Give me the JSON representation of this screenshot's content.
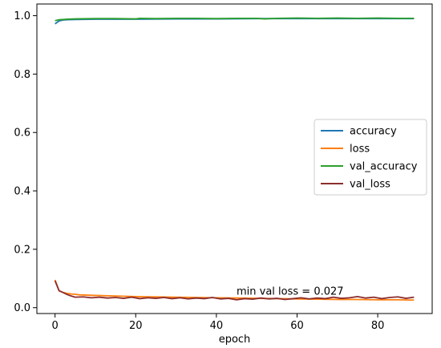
{
  "chart_data": {
    "type": "line",
    "xlabel": "epoch",
    "ylabel": "",
    "xlim": [
      -4.5,
      93.5
    ],
    "ylim": [
      -0.02,
      1.04
    ],
    "xticks": [
      0,
      20,
      40,
      60,
      80
    ],
    "yticks": [
      0.0,
      0.2,
      0.4,
      0.6,
      0.8,
      1.0
    ],
    "xtick_labels": [
      "0",
      "20",
      "40",
      "60",
      "80"
    ],
    "ytick_labels": [
      "0.0",
      "0.2",
      "0.4",
      "0.6",
      "0.8",
      "1.0"
    ],
    "grid": false,
    "legend_position": "center-right",
    "annotation": {
      "text": "min val loss = 0.027",
      "x": 45,
      "y": 0.045
    },
    "series": [
      {
        "name": "accuracy",
        "color": "#1f77b4",
        "x": [
          0,
          1,
          2,
          3,
          5,
          10,
          20,
          30,
          40,
          50,
          60,
          70,
          80,
          89
        ],
        "values": [
          0.972,
          0.982,
          0.985,
          0.986,
          0.987,
          0.988,
          0.988,
          0.989,
          0.989,
          0.99,
          0.99,
          0.99,
          0.99,
          0.99
        ]
      },
      {
        "name": "loss",
        "color": "#ff7f0e",
        "x": [
          0,
          1,
          2,
          3,
          4,
          5,
          6,
          8,
          10,
          15,
          20,
          25,
          30,
          35,
          40,
          45,
          50,
          55,
          60,
          65,
          70,
          75,
          80,
          85,
          89
        ],
        "values": [
          0.095,
          0.058,
          0.052,
          0.049,
          0.047,
          0.046,
          0.044,
          0.043,
          0.042,
          0.04,
          0.038,
          0.037,
          0.036,
          0.035,
          0.034,
          0.033,
          0.032,
          0.031,
          0.03,
          0.029,
          0.028,
          0.028,
          0.027,
          0.027,
          0.026
        ]
      },
      {
        "name": "val_accuracy",
        "color": "#2ca02c",
        "x": [
          0,
          1,
          2,
          3,
          5,
          10,
          15,
          20,
          21,
          25,
          30,
          35,
          40,
          45,
          50,
          52,
          55,
          60,
          65,
          70,
          75,
          80,
          85,
          89
        ],
        "values": [
          0.983,
          0.986,
          0.987,
          0.988,
          0.989,
          0.99,
          0.99,
          0.989,
          0.991,
          0.99,
          0.991,
          0.991,
          0.99,
          0.991,
          0.991,
          0.989,
          0.991,
          0.992,
          0.991,
          0.992,
          0.991,
          0.992,
          0.991,
          0.991
        ]
      },
      {
        "name": "val_loss",
        "color": "#8c2d2d",
        "x": [
          0,
          1,
          2,
          3,
          4,
          5,
          7,
          9,
          11,
          13,
          15,
          17,
          19,
          21,
          23,
          25,
          27,
          29,
          31,
          33,
          35,
          37,
          39,
          41,
          43,
          45,
          47,
          49,
          51,
          53,
          55,
          57,
          59,
          61,
          63,
          65,
          67,
          69,
          71,
          73,
          75,
          77,
          79,
          81,
          83,
          85,
          87,
          89
        ],
        "values": [
          0.092,
          0.058,
          0.052,
          0.045,
          0.04,
          0.036,
          0.037,
          0.034,
          0.036,
          0.033,
          0.035,
          0.032,
          0.036,
          0.031,
          0.034,
          0.032,
          0.035,
          0.031,
          0.034,
          0.03,
          0.033,
          0.031,
          0.035,
          0.03,
          0.032,
          0.027,
          0.031,
          0.029,
          0.033,
          0.03,
          0.032,
          0.028,
          0.031,
          0.034,
          0.03,
          0.033,
          0.031,
          0.036,
          0.032,
          0.034,
          0.038,
          0.033,
          0.036,
          0.031,
          0.035,
          0.037,
          0.032,
          0.036
        ]
      }
    ]
  }
}
